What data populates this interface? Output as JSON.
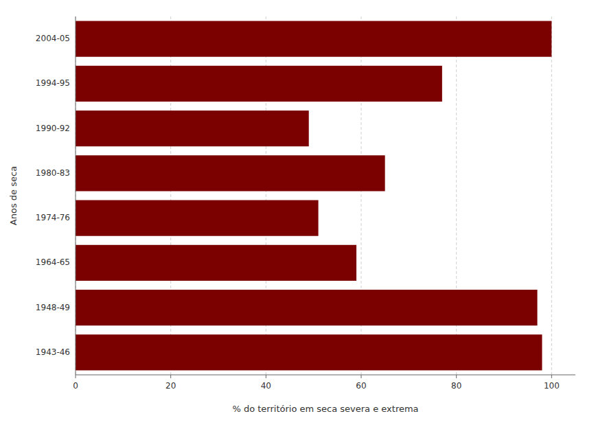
{
  "chart_data": {
    "type": "bar",
    "orientation": "horizontal",
    "categories": [
      "2004-05",
      "1994-95",
      "1990-92",
      "1980-83",
      "1974-76",
      "1964-65",
      "1948-49",
      "1943-46"
    ],
    "values": [
      100,
      77,
      49,
      65,
      51,
      59,
      97,
      98
    ],
    "color": "#7B0000",
    "xlabel": "% do território em seca severa e extrema",
    "ylabel": "Anos de seca",
    "xlim": [
      0,
      105
    ],
    "xticks": [
      0,
      20,
      40,
      60,
      80,
      100
    ],
    "grid": true
  }
}
